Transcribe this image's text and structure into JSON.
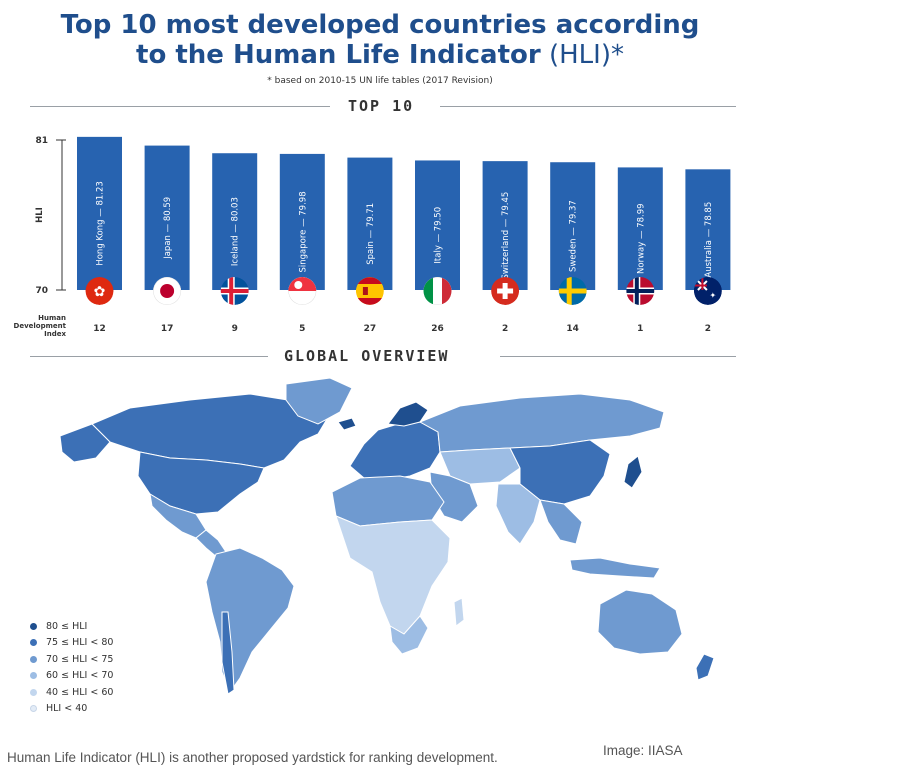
{
  "title_line1": "Top 10 most developed countries according",
  "title_line2_bold": "to the Human Life Indicator",
  "title_line2_light": " (HLI)*",
  "subtitle": "* based on 2010-15 UN life tables (2017 Revision)",
  "section_top10": "TOP 10",
  "section_global": "GLOBAL OVERVIEW",
  "hdi_label": [
    "Human",
    "Development",
    "Index"
  ],
  "colors": {
    "title": "#1f4e8c",
    "bar": "#2763b0",
    "bar_dark": "#1e4f95",
    "land_default": "#6f9ad0",
    "background": "#ffffff"
  },
  "chart_data": {
    "type": "bar",
    "ylabel": "HLI",
    "ylim": [
      70,
      81
    ],
    "yticks": [
      "81",
      "70"
    ],
    "categories": [
      "Hong Kong",
      "Japan",
      "Iceland",
      "Singapore",
      "Spain",
      "Italy",
      "Switzerland",
      "Sweden",
      "Norway",
      "Australia"
    ],
    "values": [
      81.23,
      80.59,
      80.03,
      79.98,
      79.71,
      79.5,
      79.45,
      79.37,
      78.99,
      78.85
    ],
    "bar_labels": [
      "Hong Kong — 81.23",
      "Japan — 80.59",
      "Iceland — 80.03",
      "Singapore — 79.98",
      "Spain — 79.71",
      "Italy — 79.50",
      "Switzerland — 79.45",
      "Sweden — 79.37",
      "Norway — 78.99",
      "Australia — 78.85"
    ],
    "hdi": [
      "12",
      "17",
      "9",
      "5",
      "27",
      "26",
      "2",
      "14",
      "1",
      "2"
    ],
    "flags": [
      "hong-kong-flag-icon",
      "japan-flag-icon",
      "iceland-flag-icon",
      "singapore-flag-icon",
      "spain-flag-icon",
      "italy-flag-icon",
      "switzerland-flag-icon",
      "sweden-flag-icon",
      "norway-flag-icon",
      "australia-flag-icon"
    ],
    "grid": false
  },
  "legend": [
    {
      "label": "80 ≤ HLI",
      "color": "#1f4f8f"
    },
    {
      "label": "75 ≤ HLI < 80",
      "color": "#3c70b6"
    },
    {
      "label": "70 ≤ HLI < 75",
      "color": "#6f9ad0"
    },
    {
      "label": "60 ≤ HLI < 70",
      "color": "#9dbde4"
    },
    {
      "label": "40 ≤ HLI < 60",
      "color": "#c2d6ee"
    },
    {
      "label": "HLI < 40",
      "color": "#e3ecf7"
    }
  ],
  "caption": "Human Life Indicator (HLI) is another proposed yardstick for ranking development.",
  "credit": "Image: IIASA"
}
